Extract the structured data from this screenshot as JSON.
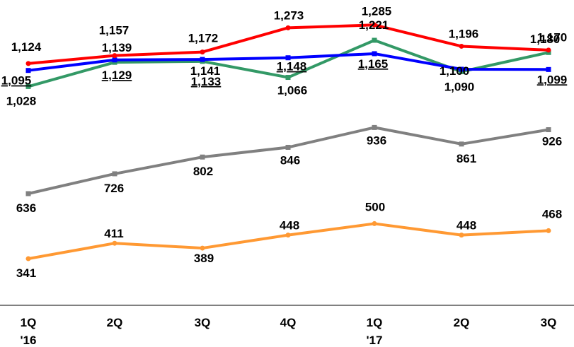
{
  "chart_data": {
    "type": "line",
    "title": "",
    "xlabel": "",
    "ylabel": "",
    "categories": [
      [
        "1Q",
        "'16"
      ],
      [
        "2Q"
      ],
      [
        "3Q"
      ],
      [
        "4Q"
      ],
      [
        "1Q",
        "'17"
      ],
      [
        "2Q"
      ],
      [
        "3Q"
      ]
    ],
    "grid": false,
    "legend": "none",
    "series": [
      {
        "color": "#ff0000",
        "marker": "circle",
        "values": [
          1124,
          1157,
          1172,
          1273,
          1285,
          1196,
          1180
        ],
        "labels": [
          "1,124",
          "1,157",
          "1,172",
          "1,273",
          "1,285",
          "1,196",
          "1,180"
        ]
      },
      {
        "color": "#0000ff",
        "marker": "square",
        "values": [
          1095,
          1139,
          1141,
          1148,
          1165,
          1100,
          1099
        ],
        "labels": [
          "1,095",
          "1,139",
          "1,141",
          "1,148",
          "1,165",
          "1,100",
          "1,099"
        ],
        "underlined": [
          true,
          false,
          false,
          true,
          true,
          false,
          true
        ]
      },
      {
        "color": "#339966",
        "marker": "square",
        "values": [
          1028,
          1129,
          1133,
          1066,
          1221,
          1090,
          1170
        ],
        "labels": [
          "1,028",
          "1,129",
          "1,133",
          "1,066",
          "1,221",
          "1,090",
          "1,170"
        ],
        "underlined": [
          false,
          true,
          true,
          false,
          false,
          false,
          false
        ]
      },
      {
        "color": "#808080",
        "marker": "square",
        "values": [
          636,
          726,
          802,
          846,
          936,
          861,
          926
        ],
        "labels": [
          "636",
          "726",
          "802",
          "846",
          "936",
          "861",
          "926"
        ]
      },
      {
        "color": "#ff9933",
        "marker": "circle",
        "values": [
          341,
          411,
          389,
          448,
          500,
          448,
          468
        ],
        "labels": [
          "341",
          "411",
          "389",
          "448",
          "500",
          "448",
          "468"
        ]
      }
    ]
  }
}
